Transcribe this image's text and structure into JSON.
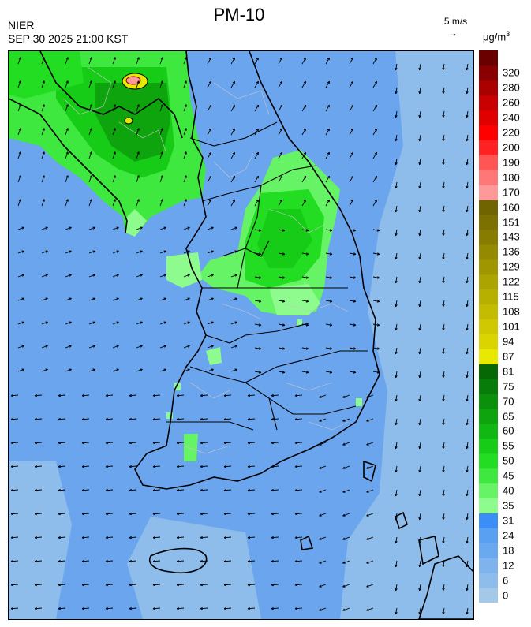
{
  "header": {
    "title": "PM-10",
    "org": "NIER",
    "timestamp": "SEP 30 2025 21:00 KST",
    "wind_scale_label": "5 m/s",
    "wind_scale_arrow": "→",
    "unit_base": "μg/m",
    "unit_exp": "3"
  },
  "legend": {
    "ticks": [
      "0",
      "6",
      "12",
      "18",
      "24",
      "31",
      "35",
      "40",
      "45",
      "50",
      "55",
      "60",
      "65",
      "70",
      "75",
      "81",
      "87",
      "94",
      "101",
      "108",
      "115",
      "122",
      "129",
      "136",
      "143",
      "151",
      "160",
      "170",
      "180",
      "190",
      "200",
      "220",
      "240",
      "260",
      "280",
      "320"
    ],
    "colors": [
      "#a4c9e8",
      "#8fbdeb",
      "#7eb3ee",
      "#6aa8f0",
      "#5aa0f2",
      "#3a8ef5",
      "#8dfb8d",
      "#66f466",
      "#3ee83e",
      "#22dd22",
      "#17cc17",
      "#12b812",
      "#0ea40e",
      "#0b900b",
      "#087c08",
      "#056805",
      "#e8e800",
      "#dcd400",
      "#d0c800",
      "#c4bc00",
      "#b8b000",
      "#aca400",
      "#a09600",
      "#948a00",
      "#887c00",
      "#7c7000",
      "#706400",
      "#ff9999",
      "#ff7777",
      "#ff5555",
      "#ff2222",
      "#ff0000",
      "#e00000",
      "#c80000",
      "#aa0000",
      "#8a0000",
      "#6a0000"
    ]
  },
  "map": {
    "background_color": "#6ba5ee",
    "boundary_color": "#000000"
  }
}
